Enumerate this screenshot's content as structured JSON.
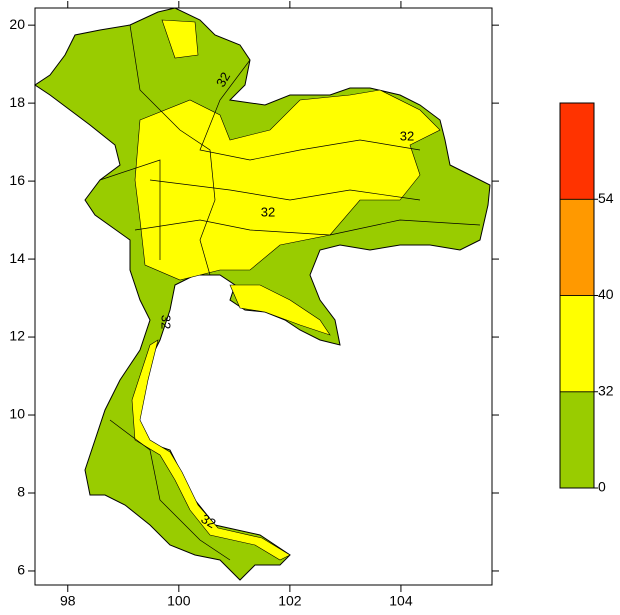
{
  "map": {
    "xlim": [
      97.41,
      105.64
    ],
    "xticks": [
      98,
      100,
      102,
      104
    ],
    "ylim": [
      5.64,
      20.44
    ],
    "yticks": [
      6,
      8,
      10,
      12,
      14,
      16,
      18,
      20
    ],
    "contour_labels": [
      "32",
      "32",
      "32",
      "32",
      "32"
    ]
  },
  "colorbar": {
    "ticks": [
      0,
      32,
      40,
      54
    ],
    "colors": [
      "#99cc00",
      "#ffff00",
      "#ff9900",
      "#ff3300"
    ]
  }
}
